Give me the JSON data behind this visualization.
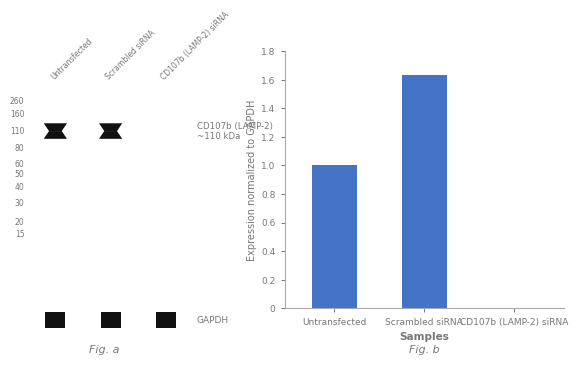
{
  "fig_a_label": "Fig. a",
  "fig_b_label": "Fig. b",
  "bar_categories": [
    "Untransfected",
    "Scrambled siRNA",
    "CD107b (LAMP-2) siRNA"
  ],
  "bar_values": [
    1.0,
    1.63,
    0.0
  ],
  "bar_color": "#4472C4",
  "ylabel": "Expression normalized to GAPDH",
  "xlabel": "Samples",
  "ylim": [
    0,
    1.8
  ],
  "yticks": [
    0,
    0.2,
    0.4,
    0.6,
    0.8,
    1.0,
    1.2,
    1.4,
    1.6,
    1.8
  ],
  "wb_bg_color": "#cccccc",
  "wb_band_color": "#111111",
  "wb_gapdh_bg": "#bbbbbb",
  "ladder_labels": [
    "260",
    "160",
    "110",
    "80",
    "60",
    "50",
    "40",
    "30",
    "20",
    "15"
  ],
  "ladder_positions": [
    0.92,
    0.855,
    0.775,
    0.695,
    0.615,
    0.565,
    0.505,
    0.425,
    0.335,
    0.275
  ],
  "annotation_text": "CD107b (LAMP-2)\n~110 kDa",
  "gapdh_text": "GAPDH",
  "col_labels": [
    "Untransfected",
    "Scrambled siRNA",
    "CD107b (LAMP-2) siRNA"
  ],
  "background_color": "#ffffff",
  "text_color": "#777777",
  "spine_color": "#aaaaaa"
}
